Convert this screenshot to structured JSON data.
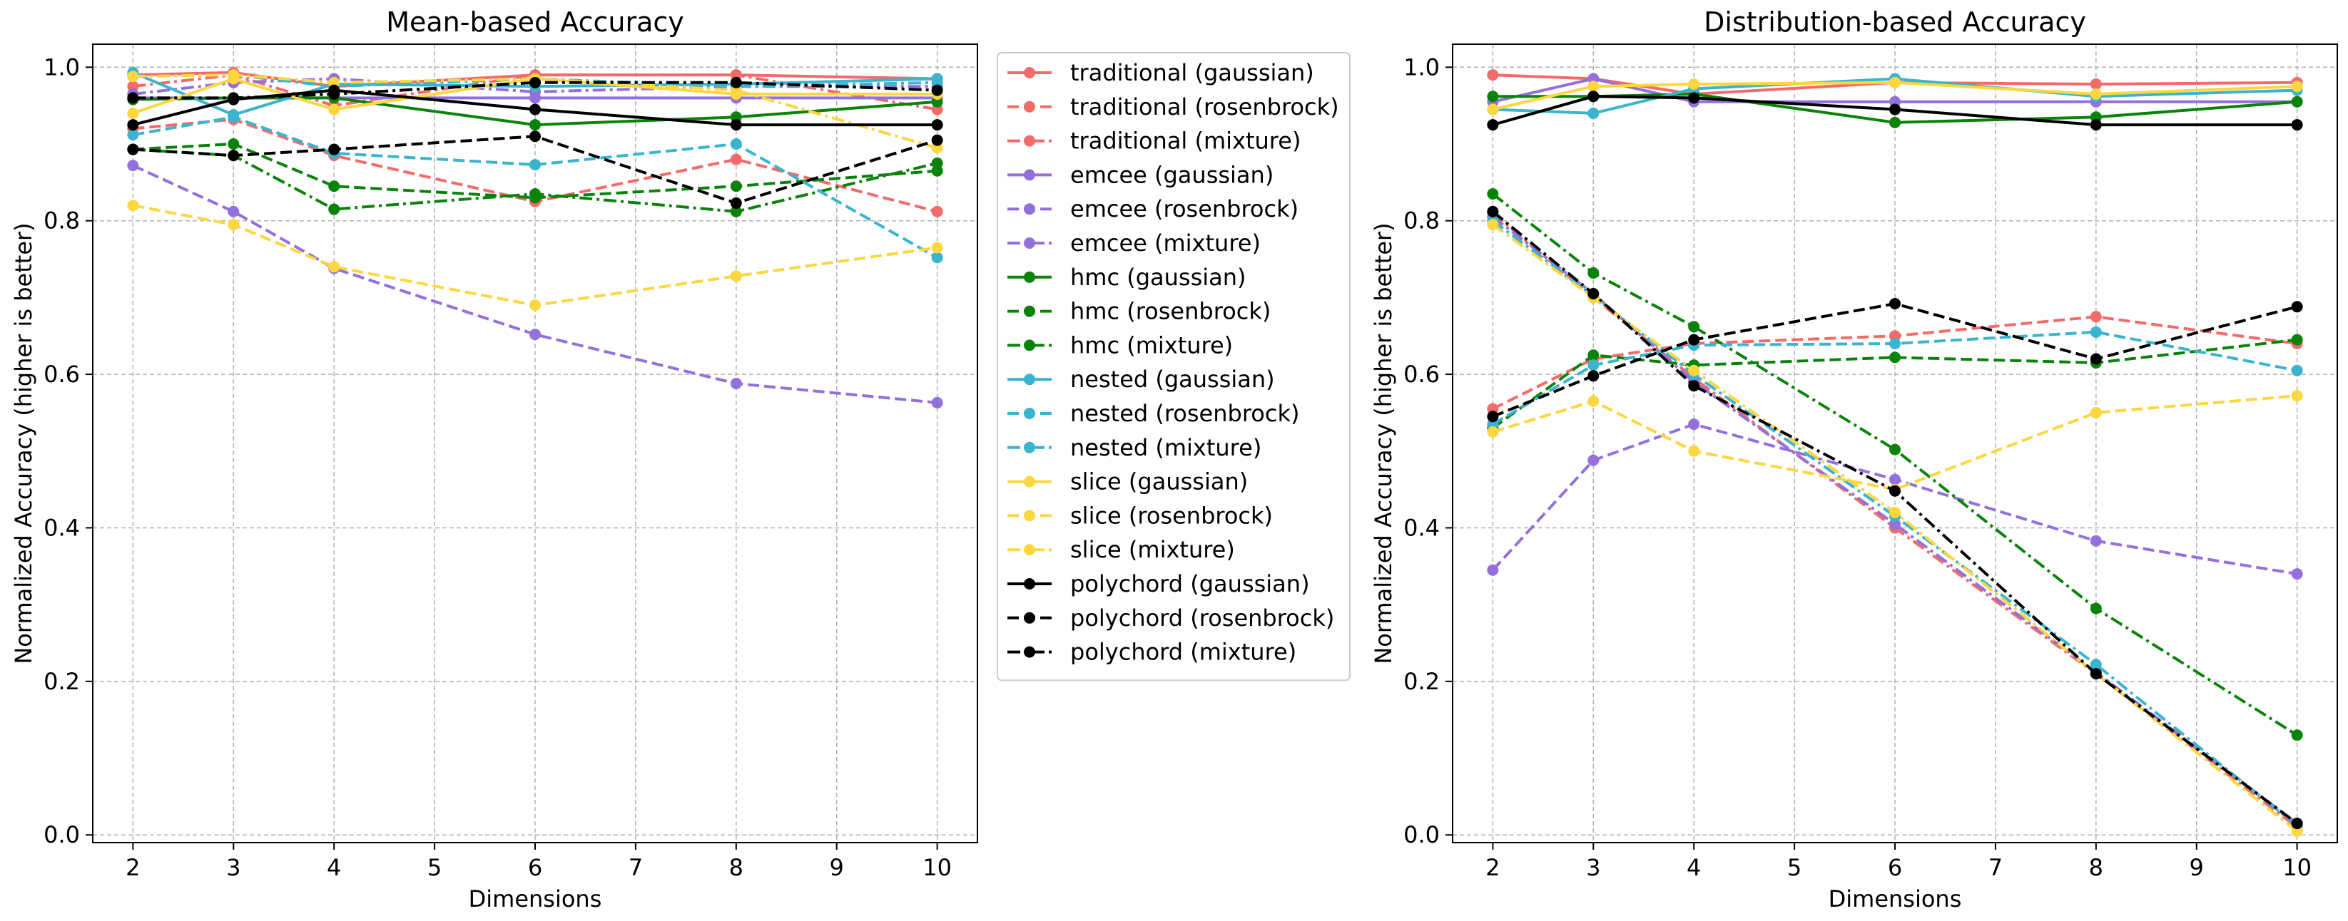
{
  "chart_data": [
    {
      "type": "line",
      "title": "Mean-based Accuracy",
      "xlabel": "Dimensions",
      "ylabel": "Normalized Accuracy (higher is better)",
      "x": [
        2,
        3,
        4,
        6,
        8,
        10
      ],
      "xticks": [
        "2",
        "3",
        "4",
        "5",
        "6",
        "7",
        "8",
        "9",
        "10"
      ],
      "yticks": [
        "0.0",
        "0.2",
        "0.4",
        "0.6",
        "0.8",
        "1.0"
      ],
      "xlim": [
        1.6,
        10.4
      ],
      "ylim": [
        -0.01,
        1.03
      ],
      "grid": true,
      "series": [
        {
          "name": "traditional (gaussian)",
          "values": [
            0.99,
            0.993,
            0.975,
            0.99,
            0.99,
            0.985
          ]
        },
        {
          "name": "traditional (rosenbrock)",
          "values": [
            0.92,
            0.932,
            0.885,
            0.825,
            0.88,
            0.812
          ]
        },
        {
          "name": "traditional (mixture)",
          "values": [
            0.975,
            0.99,
            0.95,
            0.99,
            0.99,
            0.945
          ]
        },
        {
          "name": "emcee (gaussian)",
          "values": [
            0.96,
            0.96,
            0.96,
            0.96,
            0.96,
            0.96
          ]
        },
        {
          "name": "emcee (rosenbrock)",
          "values": [
            0.872,
            0.812,
            0.738,
            0.652,
            0.588,
            0.563
          ]
        },
        {
          "name": "emcee (mixture)",
          "values": [
            0.965,
            0.98,
            0.985,
            0.968,
            0.975,
            0.975
          ]
        },
        {
          "name": "hmc (gaussian)",
          "values": [
            0.958,
            0.96,
            0.96,
            0.925,
            0.935,
            0.955
          ]
        },
        {
          "name": "hmc (rosenbrock)",
          "values": [
            0.893,
            0.9,
            0.845,
            0.83,
            0.845,
            0.865
          ]
        },
        {
          "name": "hmc (mixture)",
          "values": [
            0.893,
            0.885,
            0.815,
            0.835,
            0.812,
            0.875
          ]
        },
        {
          "name": "nested (gaussian)",
          "values": [
            0.993,
            0.938,
            0.978,
            0.975,
            0.978,
            0.985
          ]
        },
        {
          "name": "nested (rosenbrock)",
          "values": [
            0.912,
            0.935,
            0.888,
            0.873,
            0.9,
            0.752
          ]
        },
        {
          "name": "nested (mixture)",
          "values": [
            0.988,
            0.99,
            0.975,
            0.985,
            0.975,
            0.98
          ]
        },
        {
          "name": "slice (gaussian)",
          "values": [
            0.94,
            0.985,
            0.945,
            0.985,
            0.965,
            0.965
          ]
        },
        {
          "name": "slice (rosenbrock)",
          "values": [
            0.82,
            0.795,
            0.74,
            0.69,
            0.728,
            0.765
          ]
        },
        {
          "name": "slice (mixture)",
          "values": [
            0.988,
            0.99,
            0.98,
            0.985,
            0.97,
            0.895
          ]
        },
        {
          "name": "polychord (gaussian)",
          "values": [
            0.925,
            0.958,
            0.97,
            0.945,
            0.925,
            0.925
          ]
        },
        {
          "name": "polychord (rosenbrock)",
          "values": [
            0.893,
            0.885,
            0.893,
            0.91,
            0.823,
            0.905
          ]
        },
        {
          "name": "polychord (mixture)",
          "values": [
            0.96,
            0.96,
            0.965,
            0.98,
            0.98,
            0.97
          ]
        }
      ]
    },
    {
      "type": "line",
      "title": "Distribution-based Accuracy",
      "xlabel": "Dimensions",
      "ylabel": "Normalized Accuracy (higher is better)",
      "x": [
        2,
        3,
        4,
        6,
        8,
        10
      ],
      "xticks": [
        "2",
        "3",
        "4",
        "5",
        "6",
        "7",
        "8",
        "9",
        "10"
      ],
      "yticks": [
        "0.0",
        "0.2",
        "0.4",
        "0.6",
        "0.8",
        "1.0"
      ],
      "xlim": [
        1.6,
        10.4
      ],
      "ylim": [
        -0.01,
        1.03
      ],
      "grid": true,
      "series": [
        {
          "name": "traditional (gaussian)",
          "values": [
            0.99,
            0.985,
            0.965,
            0.98,
            0.978,
            0.98
          ]
        },
        {
          "name": "traditional (rosenbrock)",
          "values": [
            0.555,
            0.62,
            0.64,
            0.65,
            0.675,
            0.64
          ]
        },
        {
          "name": "traditional (mixture)",
          "values": [
            0.81,
            0.7,
            0.595,
            0.4,
            0.21,
            0.01
          ]
        },
        {
          "name": "emcee (gaussian)",
          "values": [
            0.955,
            0.985,
            0.955,
            0.955,
            0.955,
            0.955
          ]
        },
        {
          "name": "emcee (rosenbrock)",
          "values": [
            0.345,
            0.488,
            0.535,
            0.463,
            0.383,
            0.34
          ]
        },
        {
          "name": "emcee (mixture)",
          "values": [
            0.805,
            0.705,
            0.59,
            0.405,
            0.212,
            0.015
          ]
        },
        {
          "name": "hmc (gaussian)",
          "values": [
            0.962,
            0.962,
            0.965,
            0.928,
            0.935,
            0.955
          ]
        },
        {
          "name": "hmc (rosenbrock)",
          "values": [
            0.53,
            0.625,
            0.612,
            0.622,
            0.615,
            0.645
          ]
        },
        {
          "name": "hmc (mixture)",
          "values": [
            0.835,
            0.732,
            0.662,
            0.502,
            0.295,
            0.13
          ]
        },
        {
          "name": "nested (gaussian)",
          "values": [
            0.945,
            0.94,
            0.972,
            0.985,
            0.962,
            0.97
          ]
        },
        {
          "name": "nested (rosenbrock)",
          "values": [
            0.535,
            0.612,
            0.638,
            0.64,
            0.655,
            0.605
          ]
        },
        {
          "name": "nested (mixture)",
          "values": [
            0.8,
            0.702,
            0.6,
            0.415,
            0.222,
            0.012
          ]
        },
        {
          "name": "slice (gaussian)",
          "values": [
            0.945,
            0.975,
            0.978,
            0.98,
            0.965,
            0.975
          ]
        },
        {
          "name": "slice (rosenbrock)",
          "values": [
            0.525,
            0.565,
            0.5,
            0.45,
            0.55,
            0.572
          ]
        },
        {
          "name": "slice (mixture)",
          "values": [
            0.795,
            0.7,
            0.605,
            0.42,
            0.21,
            0.005
          ]
        },
        {
          "name": "polychord (gaussian)",
          "values": [
            0.925,
            0.962,
            0.96,
            0.945,
            0.925,
            0.925
          ]
        },
        {
          "name": "polychord (rosenbrock)",
          "values": [
            0.545,
            0.598,
            0.645,
            0.692,
            0.62,
            0.688
          ]
        },
        {
          "name": "polychord (mixture)",
          "values": [
            0.812,
            0.705,
            0.585,
            0.448,
            0.21,
            0.015
          ]
        }
      ]
    }
  ],
  "legend": {
    "placement": "between-panels",
    "entries": [
      {
        "name": "traditional (gaussian)",
        "color": "#f26b6b",
        "style": "solid"
      },
      {
        "name": "traditional (rosenbrock)",
        "color": "#f26b6b",
        "style": "dashed"
      },
      {
        "name": "traditional (mixture)",
        "color": "#f26b6b",
        "style": "dashdot"
      },
      {
        "name": "emcee (gaussian)",
        "color": "#9370db",
        "style": "solid"
      },
      {
        "name": "emcee (rosenbrock)",
        "color": "#9370db",
        "style": "dashed"
      },
      {
        "name": "emcee (mixture)",
        "color": "#9370db",
        "style": "dashdot"
      },
      {
        "name": "hmc (gaussian)",
        "color": "#0b830b",
        "style": "solid"
      },
      {
        "name": "hmc (rosenbrock)",
        "color": "#0b830b",
        "style": "dashed"
      },
      {
        "name": "hmc (mixture)",
        "color": "#0b830b",
        "style": "dashdot"
      },
      {
        "name": "nested (gaussian)",
        "color": "#3ab4cf",
        "style": "solid"
      },
      {
        "name": "nested (rosenbrock)",
        "color": "#3ab4cf",
        "style": "dashed"
      },
      {
        "name": "nested (mixture)",
        "color": "#3ab4cf",
        "style": "dashdot"
      },
      {
        "name": "slice (gaussian)",
        "color": "#fdd640",
        "style": "solid"
      },
      {
        "name": "slice (rosenbrock)",
        "color": "#fdd640",
        "style": "dashed"
      },
      {
        "name": "slice (mixture)",
        "color": "#fdd640",
        "style": "dashdot"
      },
      {
        "name": "polychord (gaussian)",
        "color": "#000000",
        "style": "solid"
      },
      {
        "name": "polychord (rosenbrock)",
        "color": "#000000",
        "style": "dashed"
      },
      {
        "name": "polychord (mixture)",
        "color": "#000000",
        "style": "dashdot"
      }
    ]
  }
}
